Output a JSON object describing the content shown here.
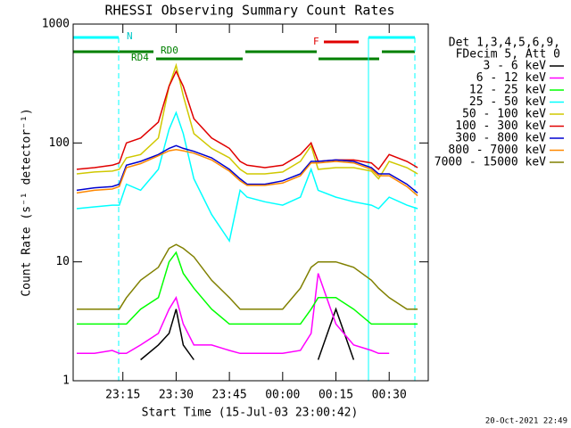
{
  "chart_data": {
    "type": "line",
    "title": "RHESSI Observing Summary Count Rates",
    "x_label": "Start Time (15-Jul-03 23:00:42)",
    "y_label": "Count Rate (s⁻¹ detector⁻¹)",
    "legend_header": [
      "Det 1,3,4,5,6,9,",
      "FDecim 5, Att 0"
    ],
    "annotations": [
      "N",
      "RD0",
      "RD4",
      "F"
    ],
    "timestamp": "20-Oct-2021 22:49",
    "log_y": true,
    "xlim": [
      "23:01",
      "00:41"
    ],
    "xticks": [
      "23:15",
      "23:30",
      "23:45",
      "00:00",
      "00:15",
      "00:30"
    ],
    "ylim": [
      1,
      1000
    ],
    "yticks": [
      1,
      10,
      100,
      1000
    ],
    "x": [
      "23:02",
      "23:07",
      "23:12",
      "23:14",
      "23:16",
      "23:20",
      "23:25",
      "23:28",
      "23:30",
      "23:32",
      "23:35",
      "23:40",
      "23:45",
      "23:48",
      "23:50",
      "23:55",
      "00:00",
      "00:05",
      "00:08",
      "00:10",
      "00:15",
      "00:20",
      "00:25",
      "00:27",
      "00:30",
      "00:35",
      "00:38"
    ],
    "series": [
      {
        "name": "3 - 6 keV",
        "color": "#000000",
        "values": [
          null,
          null,
          null,
          null,
          null,
          1.5,
          2,
          2.5,
          4,
          2,
          1.5,
          null,
          null,
          null,
          null,
          null,
          null,
          null,
          null,
          1.5,
          4,
          1.5,
          null,
          null,
          null,
          null,
          null
        ]
      },
      {
        "name": "6 - 12 keV",
        "color": "#ff00ff",
        "values": [
          1.7,
          1.7,
          1.8,
          1.7,
          1.7,
          2,
          2.5,
          4,
          5,
          3,
          2,
          2,
          1.8,
          1.7,
          1.7,
          1.7,
          1.7,
          1.8,
          2.5,
          8,
          3,
          2,
          1.8,
          1.7,
          1.7,
          null,
          null
        ]
      },
      {
        "name": "12 - 25 keV",
        "color": "#00ff00",
        "values": [
          3,
          3,
          3,
          3,
          3,
          4,
          5,
          10,
          12,
          8,
          6,
          4,
          3,
          3,
          3,
          3,
          3,
          3,
          4,
          5,
          5,
          4,
          3,
          3,
          3,
          3,
          3
        ]
      },
      {
        "name": "25 - 50 keV",
        "color": "#00ffff",
        "values": [
          28,
          29,
          30,
          30,
          45,
          40,
          60,
          130,
          180,
          120,
          50,
          25,
          15,
          40,
          35,
          32,
          30,
          35,
          60,
          40,
          35,
          32,
          30,
          28,
          35,
          30,
          28
        ]
      },
      {
        "name": "50 - 100 keV",
        "color": "#d0c800",
        "values": [
          55,
          57,
          58,
          60,
          75,
          80,
          110,
          300,
          450,
          250,
          120,
          90,
          75,
          60,
          55,
          55,
          57,
          70,
          95,
          60,
          62,
          62,
          58,
          50,
          70,
          62,
          55
        ]
      },
      {
        "name": "100 - 300 keV",
        "color": "#e00000",
        "values": [
          60,
          62,
          65,
          68,
          100,
          110,
          150,
          300,
          400,
          300,
          160,
          110,
          90,
          70,
          65,
          62,
          65,
          80,
          100,
          70,
          72,
          72,
          68,
          60,
          80,
          70,
          62
        ]
      },
      {
        "name": "300 - 800 keV",
        "color": "#0000d0",
        "values": [
          40,
          42,
          43,
          45,
          65,
          70,
          80,
          90,
          95,
          90,
          85,
          75,
          60,
          50,
          45,
          45,
          48,
          55,
          70,
          70,
          72,
          70,
          62,
          55,
          55,
          45,
          38
        ]
      },
      {
        "name": "800 - 7000 keV",
        "color": "#ff8800",
        "values": [
          38,
          40,
          41,
          43,
          62,
          67,
          78,
          86,
          88,
          86,
          82,
          72,
          58,
          48,
          44,
          44,
          46,
          53,
          68,
          68,
          70,
          68,
          60,
          53,
          53,
          43,
          36
        ]
      },
      {
        "name": "7000 - 15000 keV",
        "color": "#808000",
        "values": [
          4,
          4,
          4,
          4,
          5,
          7,
          9,
          13,
          14,
          13,
          11,
          7,
          5,
          4,
          4,
          4,
          4,
          6,
          9,
          10,
          10,
          9,
          7,
          6,
          5,
          4,
          4
        ]
      }
    ]
  }
}
